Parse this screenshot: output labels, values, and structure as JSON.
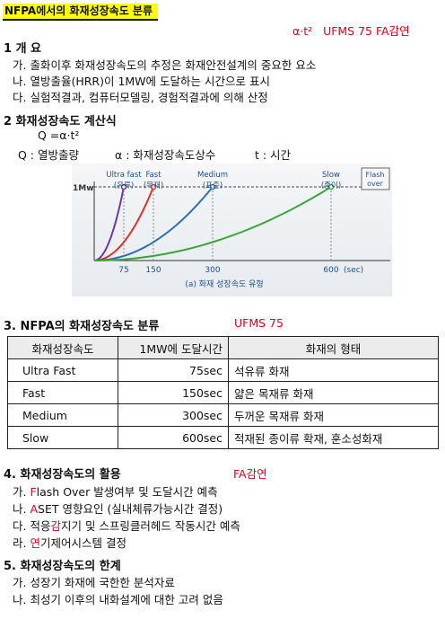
{
  "title": "NFPA에서의 화재성장속도 분류",
  "formula_ref": {
    "formula": "α·t²",
    "source": "UFMS 75 FA감연"
  },
  "section1": {
    "heading": "1 개  요",
    "items": [
      "가. 출화이후 화재성장속도의 추정은 화재안전설계의 중요한 요소",
      "나. 열방출율(HRR)이 1MW에 도달하는 시간으로 표시",
      "다. 실험적결과, 컴퓨터모델링, 경험적결과에 의해 산정"
    ]
  },
  "section2": {
    "heading": "2 화재성장속도 계산식",
    "formula": "Q =α·t²",
    "legend": [
      "Q  : 열방출량",
      "α : 화재성장속도상수",
      "t : 시간"
    ]
  },
  "chart_data": {
    "type": "line",
    "title": "(a) 화재 성장속도 유형",
    "xlabel": "(sec)",
    "ylabel": "1Mw",
    "x_ticks": [
      75,
      150,
      300,
      600
    ],
    "xlim": [
      0,
      750
    ],
    "ylim": [
      0,
      1
    ],
    "series": [
      {
        "name": "Ultra fast (유류)",
        "color": "#6a3aa3",
        "t_1mw": 75
      },
      {
        "name": "Fast (목재)",
        "color": "#e0302a",
        "t_1mw": 150
      },
      {
        "name": "Medium (표준)",
        "color": "#2e6fb8",
        "t_1mw": 300
      },
      {
        "name": "Slow (종이)",
        "color": "#3aa63a",
        "t_1mw": 600
      }
    ],
    "annotation": "Flash over",
    "grid": false
  },
  "section3": {
    "heading": "3. NFPA의 화재성장속도 분류",
    "source": "UFMS 75",
    "table": {
      "headers": [
        "화재성장속도",
        "1MW에 도달시간",
        "화재의 형태"
      ],
      "rows": [
        [
          "Ultra Fast",
          "75sec",
          "석유류 화재"
        ],
        [
          "Fast",
          "150sec",
          "얇은 목재류 화재"
        ],
        [
          "Medium",
          "300sec",
          "두꺼운 목재류 화재"
        ],
        [
          "Slow",
          "600sec",
          "적재된 종이류 확재, 훈소성화재"
        ]
      ]
    }
  },
  "section4": {
    "heading": "4. 화재성장속도의 활용",
    "source": "FA감연",
    "items": [
      {
        "prefix": "가. ",
        "hl": "F",
        "rest": "lash Over 발생여부 및 도달시간 예측"
      },
      {
        "prefix": "나. ",
        "hl": "A",
        "rest": "SET 영향요인 (실내체류가능시간 결정)"
      },
      {
        "prefix": "다. 적응",
        "hl": "감",
        "rest": "지기 및 스프링클러헤드 작동시간 예측"
      },
      {
        "prefix": "라. ",
        "hl": "연",
        "rest": "기제어시스템 결정"
      }
    ]
  },
  "section5": {
    "heading": "5. 화재성장속도의 한계",
    "items": [
      "가. 성장기 화재에 국한한 분석자료",
      "나. 최성기 이후의 내화설계에 대한 고려 없음"
    ]
  }
}
